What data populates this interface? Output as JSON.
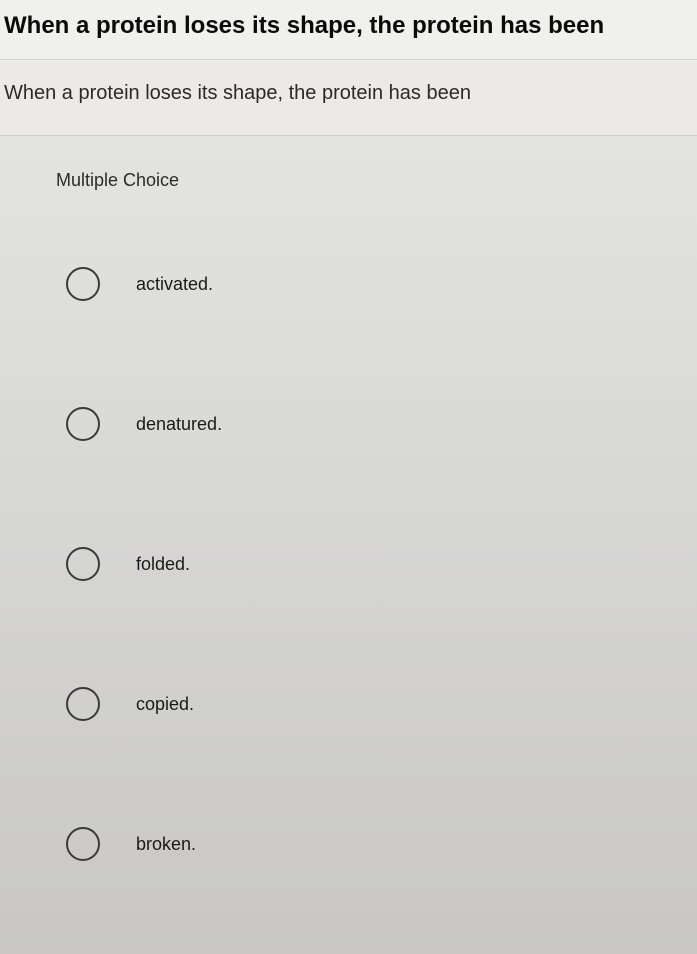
{
  "question": {
    "title": "When a protein loses its shape, the protein has been",
    "subtitle": "When a protein loses its shape, the protein has been",
    "type_label": "Multiple Choice",
    "options": [
      {
        "label": "activated."
      },
      {
        "label": "denatured."
      },
      {
        "label": "folded."
      },
      {
        "label": "copied."
      },
      {
        "label": "broken."
      }
    ]
  },
  "style": {
    "title_fontsize": 24,
    "title_weight": "700",
    "subtitle_fontsize": 20,
    "option_fontsize": 18,
    "radio_size": 34,
    "radio_border_color": "#3a3a3a",
    "text_color": "#1a1a1a",
    "bg_gradient_top": "#e8e8e6",
    "bg_gradient_bottom": "#c8c7c3"
  }
}
